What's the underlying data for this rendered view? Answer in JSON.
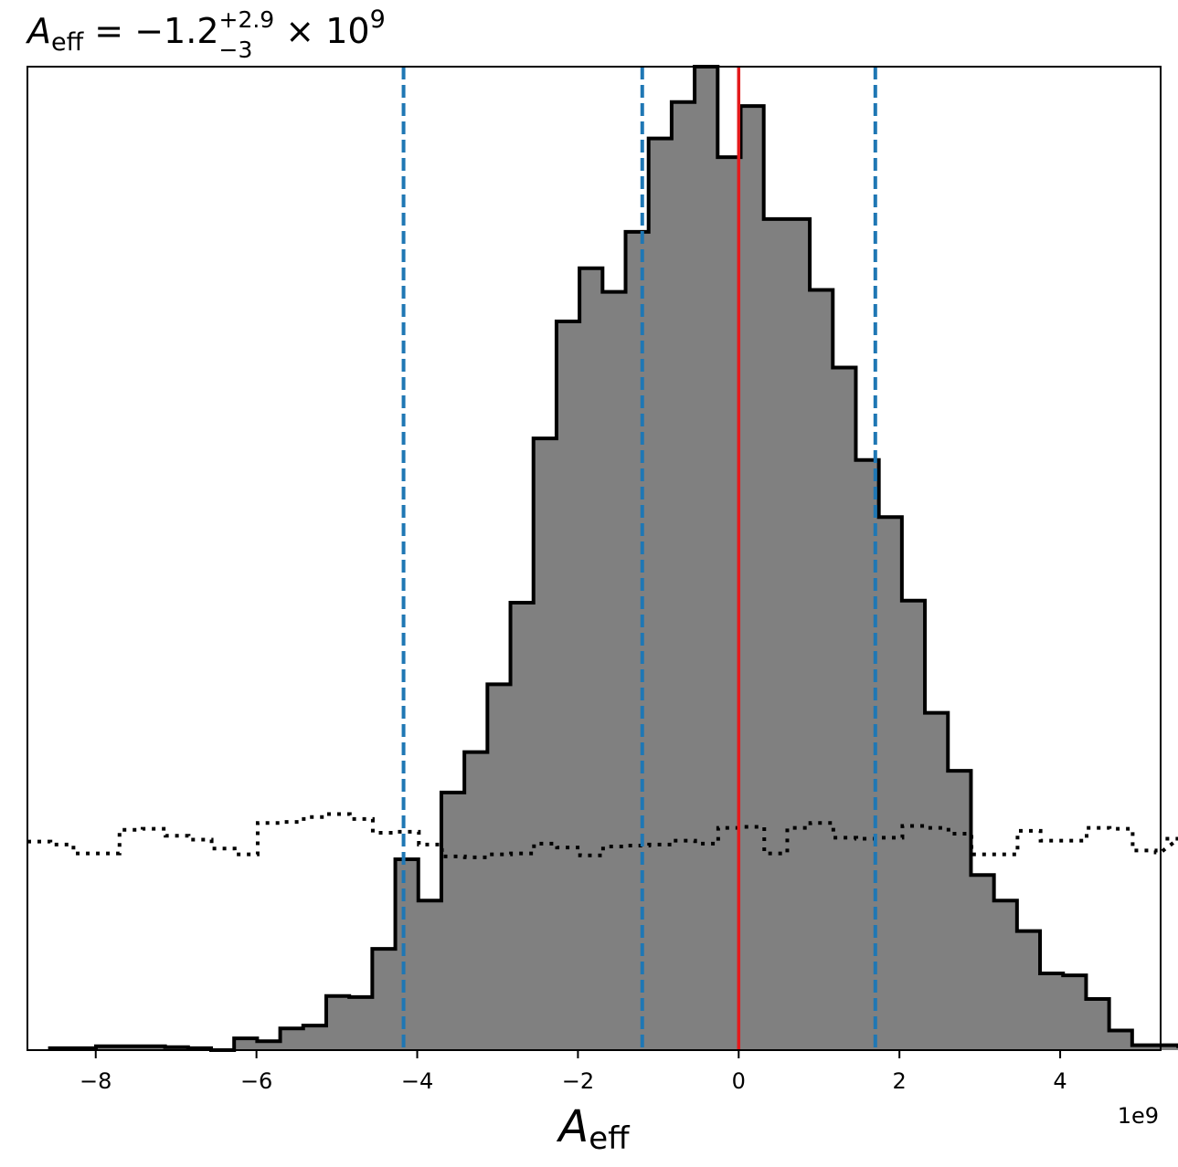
{
  "chart_data": {
    "type": "histogram",
    "title": {
      "symbol": "A",
      "subscript": "eff",
      "equals": " = ",
      "value": "−1.2",
      "upper_err": "+2.9",
      "lower_err": "−3",
      "times": " × 10",
      "exponent": "9"
    },
    "xlabel": {
      "symbol": "A",
      "subscript": "eff"
    },
    "ylabel": "",
    "x_offset_label": "1e9",
    "xlim": [
      -8.85,
      5.25
    ],
    "ylim": [
      0,
      1
    ],
    "x_ticks": [
      {
        "value": -8,
        "label": "−8"
      },
      {
        "value": -6,
        "label": "−6"
      },
      {
        "value": -4,
        "label": "−4"
      },
      {
        "value": -2,
        "label": "−2"
      },
      {
        "value": 0,
        "label": "0"
      },
      {
        "value": 2,
        "label": "2"
      },
      {
        "value": 4,
        "label": "4"
      }
    ],
    "y_ticks_shown": false,
    "grid": false,
    "bin_width": 0.2865,
    "posterior_bin_edges_start": -8.57,
    "posterior_counts": [
      0.002,
      0.002,
      0.004,
      0.004,
      0.004,
      0.003,
      0.002,
      0,
      0.012,
      0.009,
      0.022,
      0.025,
      0.055,
      0.054,
      0.103,
      0.194,
      0.152,
      0.262,
      0.303,
      0.372,
      0.455,
      0.622,
      0.741,
      0.795,
      0.771,
      0.832,
      0.927,
      0.964,
      1.0,
      0.908,
      0.96,
      0.845,
      0.845,
      0.773,
      0.694,
      0.6,
      0.542,
      0.457,
      0.343,
      0.284,
      0.178,
      0.152,
      0.121,
      0.078,
      0.076,
      0.052,
      0.02,
      0.005,
      0.005,
      0.004
    ],
    "prior_bin_edges_start": -8.85,
    "prior_counts": [
      0.212,
      0.209,
      0.2,
      0.2,
      0.224,
      0.225,
      0.218,
      0.214,
      0.205,
      0.199,
      0.231,
      0.232,
      0.237,
      0.24,
      0.235,
      0.221,
      0.222,
      0.209,
      0.197,
      0.196,
      0.199,
      0.2,
      0.21,
      0.206,
      0.198,
      0.207,
      0.208,
      0.209,
      0.213,
      0.21,
      0.226,
      0.227,
      0.2,
      0.226,
      0.231,
      0.216,
      0.215,
      0.216,
      0.228,
      0.226,
      0.22,
      0.199,
      0.199,
      0.223,
      0.213,
      0.213,
      0.226,
      0.225,
      0.203,
      0.201,
      0.215
    ],
    "colors": {
      "posterior_fill": "#808080",
      "posterior_edge": "#000000",
      "prior_line": "#000000",
      "quantile_lines": "#1f77b4",
      "reference_line": "#e41a1c"
    },
    "quantile_lines": [
      -4.17,
      -1.2,
      1.7
    ],
    "reference_line": 0
  }
}
